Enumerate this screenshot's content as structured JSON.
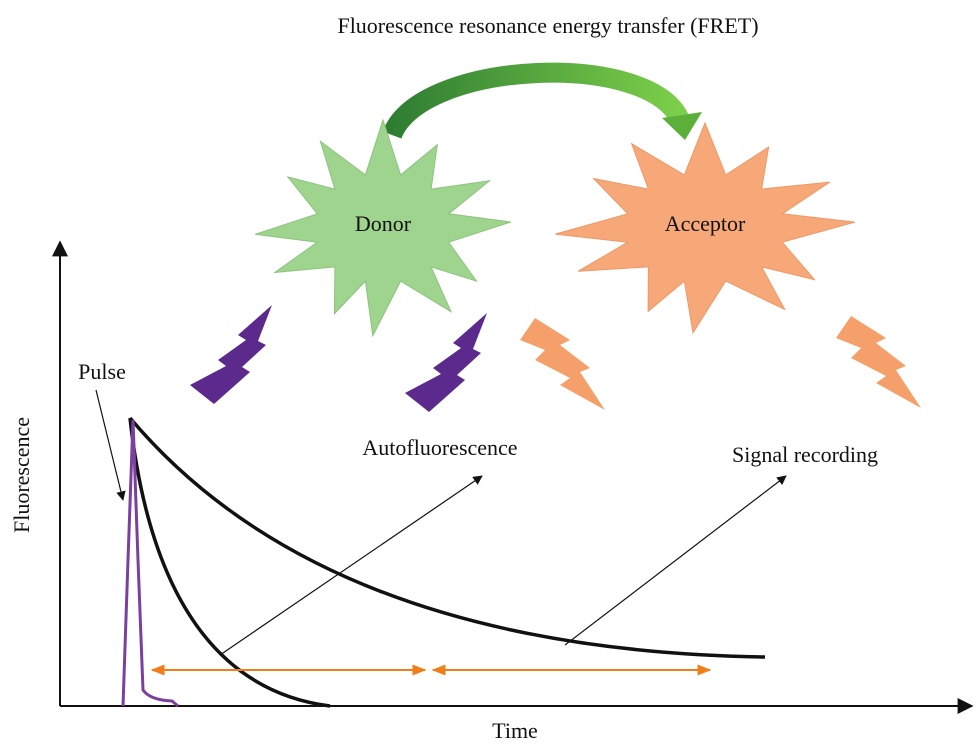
{
  "title": "Fluorescence resonance energy transfer (FRET)",
  "nodes": [
    {
      "label": "Donor"
    },
    {
      "label": "Acceptor"
    }
  ],
  "annotations": {
    "pulse": "Pulse",
    "autofluorescence": "Autofluorescence",
    "signal_recording": "Signal recording"
  },
  "axes": {
    "y_label": "Fluorescence",
    "x_label": "Time"
  }
}
